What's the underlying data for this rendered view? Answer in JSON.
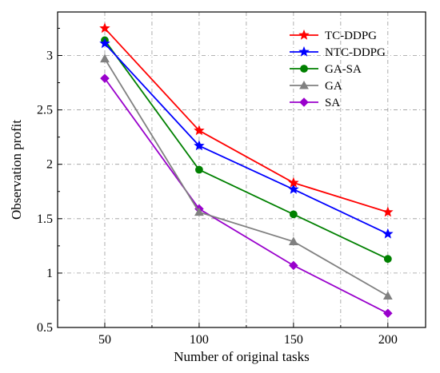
{
  "chart_data": {
    "type": "line",
    "title": "",
    "xlabel": "Number of original tasks",
    "ylabel": "Observation profit",
    "x": [
      50,
      100,
      150,
      200
    ],
    "x_ticks": [
      50,
      100,
      150,
      200
    ],
    "y_ticks": [
      0.5,
      1,
      1.5,
      2,
      2.5,
      3
    ],
    "x_tick_labels": [
      "50",
      "100",
      "150",
      "200"
    ],
    "y_tick_labels": [
      "0.5",
      "1",
      "1.5",
      "2",
      "2.5",
      "3"
    ],
    "xlim": [
      25,
      220
    ],
    "ylim": [
      0.5,
      3.4
    ],
    "grid": true,
    "legend_position": "top-right",
    "series": [
      {
        "name": "TC-DDPG",
        "color": "#ff0000",
        "marker": "star",
        "values": [
          3.25,
          2.31,
          1.83,
          1.56
        ]
      },
      {
        "name": "NTC-DDPG",
        "color": "#0000ff",
        "marker": "star",
        "values": [
          3.11,
          2.17,
          1.77,
          1.36
        ]
      },
      {
        "name": "GA-SA",
        "color": "#008000",
        "marker": "circle",
        "values": [
          3.14,
          1.95,
          1.54,
          1.13
        ]
      },
      {
        "name": "GA",
        "color": "#808080",
        "marker": "triangle",
        "values": [
          2.97,
          1.56,
          1.29,
          0.79
        ]
      },
      {
        "name": "SA",
        "color": "#9900cc",
        "marker": "diamond",
        "values": [
          2.79,
          1.59,
          1.07,
          0.63
        ]
      }
    ]
  }
}
